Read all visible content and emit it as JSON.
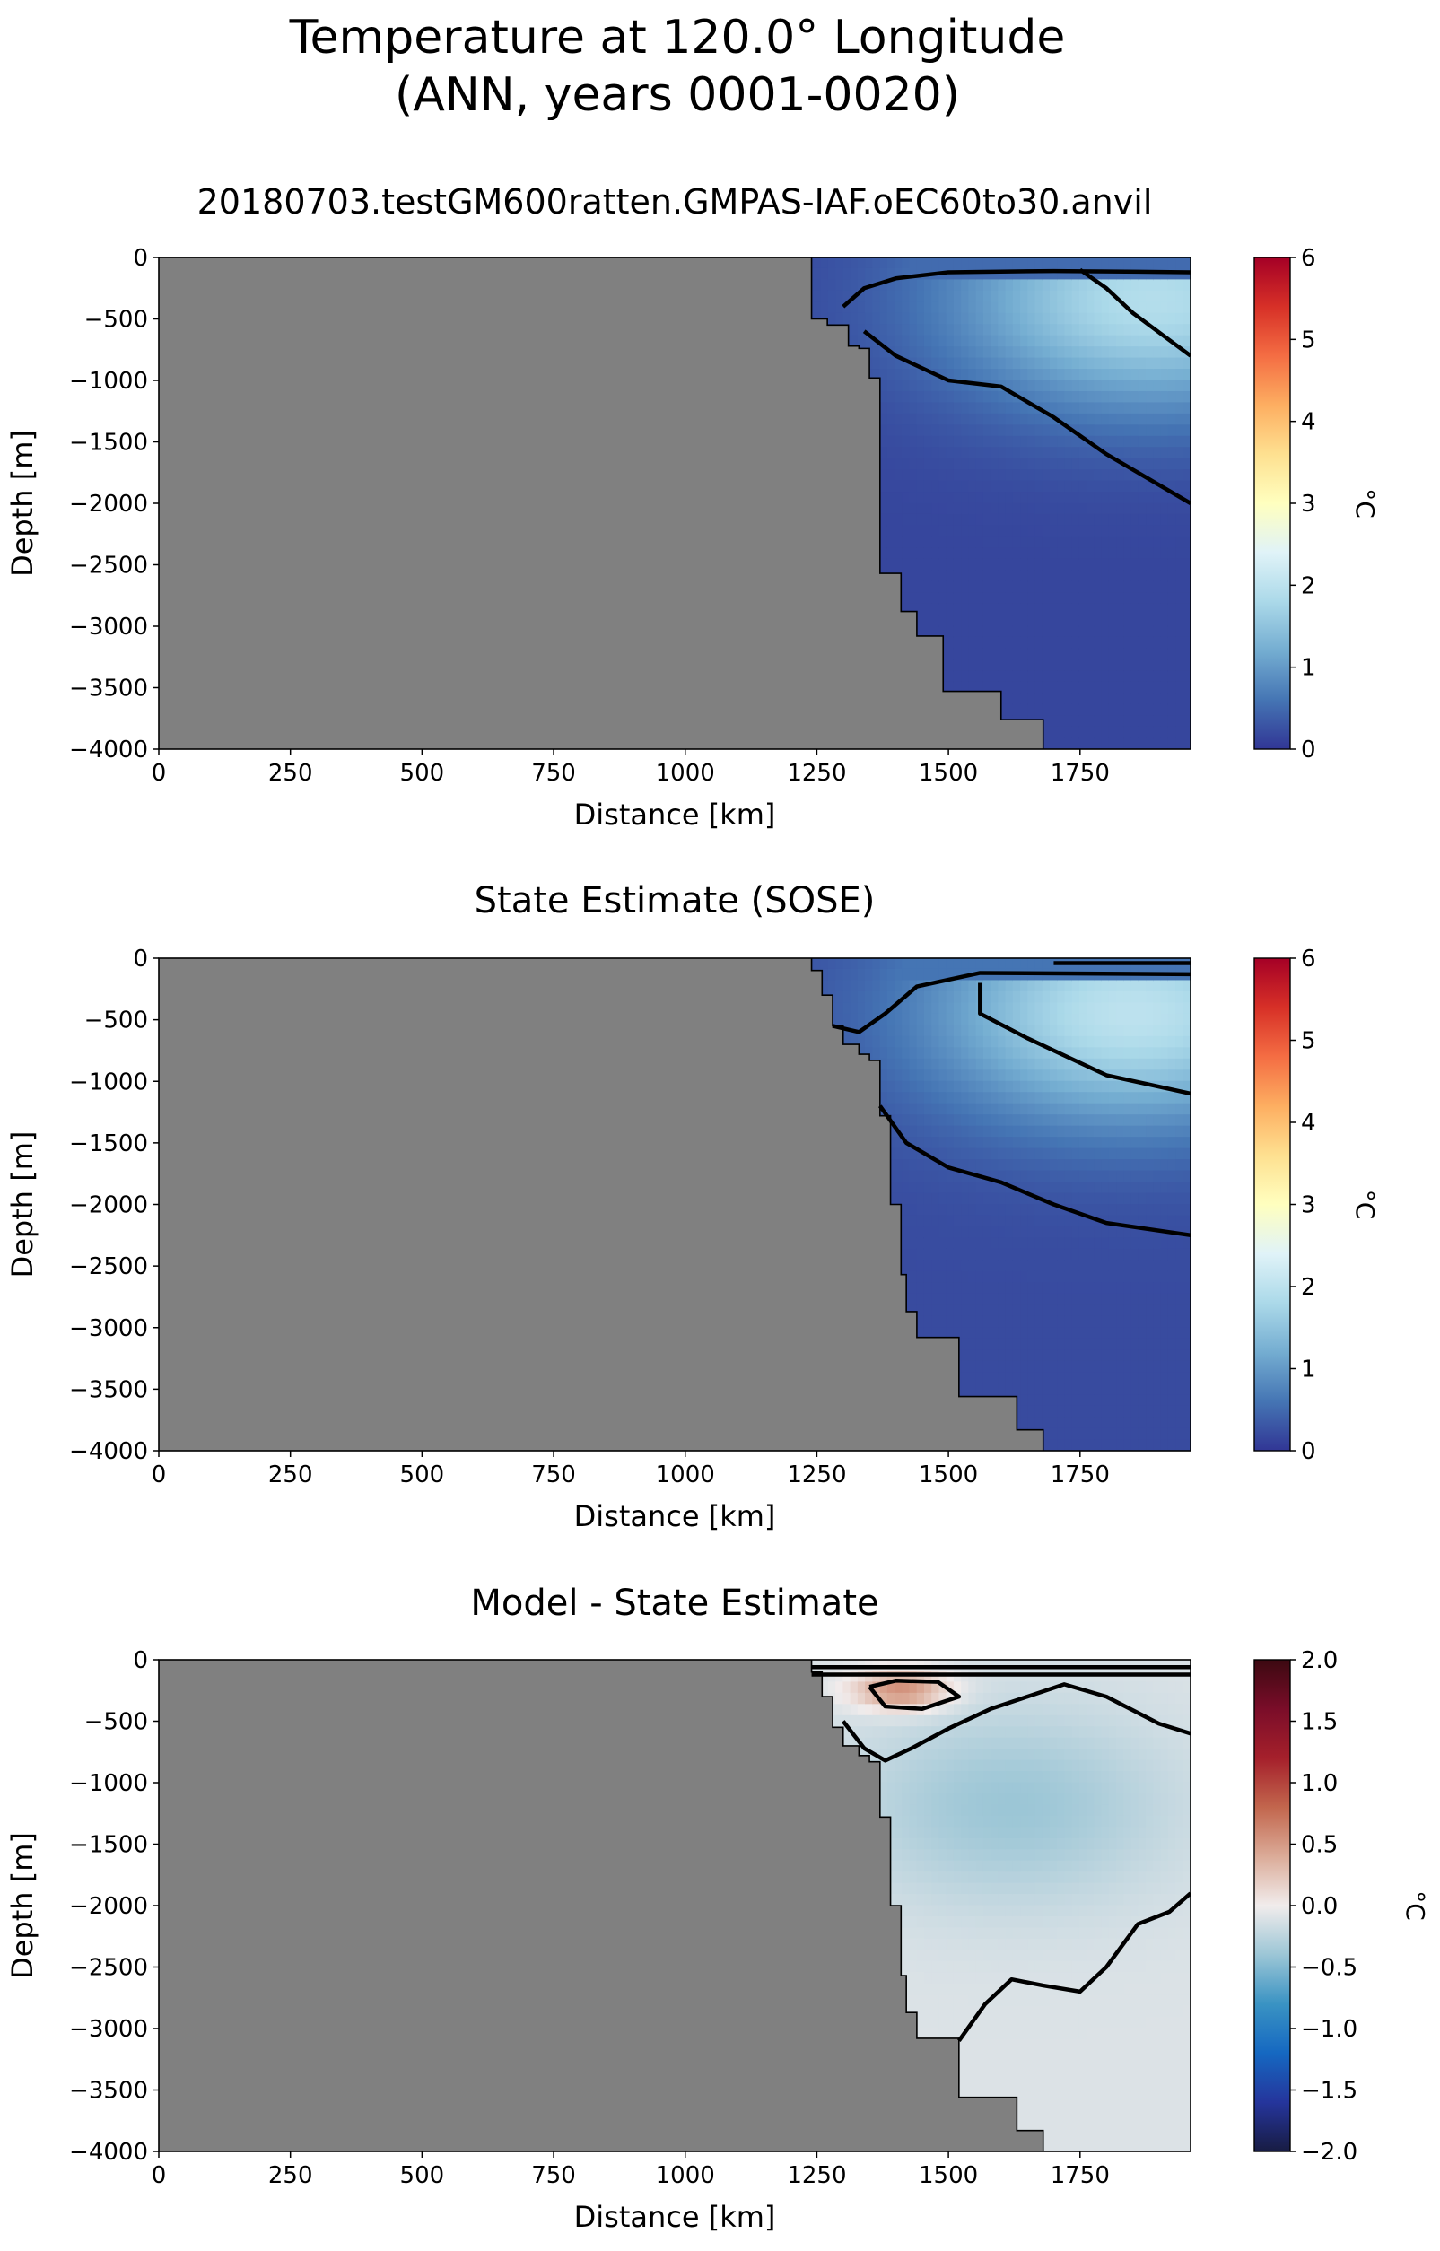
{
  "figure": {
    "title_line1": "Temperature at 120.0° Longitude",
    "title_line2": "(ANN, years 0001-0020)"
  },
  "colors": {
    "land": "#808080",
    "contour": "#000000",
    "temp_colormap": "RdYlBu_r",
    "diff_colormap": "balance"
  },
  "chart_data": [
    {
      "type": "heatmap",
      "title": "20180703.testGM600ratten.GMPAS-IAF.oEC60to30.anvil",
      "xlabel": "Distance [km]",
      "ylabel": "Depth [m]",
      "xlim": [
        0,
        1960
      ],
      "ylim": [
        -4000,
        0
      ],
      "xticks": [
        0,
        250,
        500,
        750,
        1000,
        1250,
        1500,
        1750
      ],
      "yticks": [
        0,
        -500,
        -1000,
        -1500,
        -2000,
        -2500,
        -3000,
        -3500,
        -4000
      ],
      "colorbar": {
        "label": "°C",
        "min": 0,
        "max": 6,
        "ticks": [
          0,
          1,
          2,
          3,
          4,
          5,
          6
        ],
        "colormap": "RdYlBu_r"
      },
      "grid": false,
      "bathymetry": [
        [
          1240,
          0
        ],
        [
          1240,
          -500
        ],
        [
          1270,
          -500
        ],
        [
          1270,
          -550
        ],
        [
          1310,
          -550
        ],
        [
          1310,
          -720
        ],
        [
          1330,
          -720
        ],
        [
          1330,
          -740
        ],
        [
          1350,
          -740
        ],
        [
          1350,
          -980
        ],
        [
          1370,
          -980
        ],
        [
          1370,
          -2570
        ],
        [
          1410,
          -2570
        ],
        [
          1410,
          -2880
        ],
        [
          1440,
          -2880
        ],
        [
          1440,
          -3080
        ],
        [
          1490,
          -3080
        ],
        [
          1490,
          -3530
        ],
        [
          1600,
          -3530
        ],
        [
          1600,
          -3760
        ],
        [
          1680,
          -3760
        ],
        [
          1680,
          -4000
        ]
      ],
      "field": {
        "surface_value": 0.3,
        "core": {
          "x": 1890,
          "depth": -350,
          "value": 1.9
        },
        "deep_value": 0.15
      },
      "contours": [
        [
          [
            1300,
            -400
          ],
          [
            1340,
            -250
          ],
          [
            1400,
            -170
          ],
          [
            1500,
            -120
          ],
          [
            1700,
            -110
          ],
          [
            1960,
            -120
          ]
        ],
        [
          [
            1340,
            -600
          ],
          [
            1400,
            -800
          ],
          [
            1500,
            -1000
          ],
          [
            1600,
            -1050
          ],
          [
            1700,
            -1300
          ],
          [
            1800,
            -1600
          ],
          [
            1960,
            -2000
          ]
        ],
        [
          [
            1750,
            -100
          ],
          [
            1800,
            -250
          ],
          [
            1850,
            -450
          ],
          [
            1960,
            -800
          ]
        ]
      ]
    },
    {
      "type": "heatmap",
      "title": "State Estimate (SOSE)",
      "xlabel": "Distance [km]",
      "ylabel": "Depth [m]",
      "xlim": [
        0,
        1960
      ],
      "ylim": [
        -4000,
        0
      ],
      "xticks": [
        0,
        250,
        500,
        750,
        1000,
        1250,
        1500,
        1750
      ],
      "yticks": [
        0,
        -500,
        -1000,
        -1500,
        -2000,
        -2500,
        -3000,
        -3500,
        -4000
      ],
      "colorbar": {
        "label": "°C",
        "min": 0,
        "max": 6,
        "ticks": [
          0,
          1,
          2,
          3,
          4,
          5,
          6
        ],
        "colormap": "RdYlBu_r"
      },
      "grid": false,
      "bathymetry": [
        [
          1240,
          0
        ],
        [
          1240,
          -100
        ],
        [
          1260,
          -100
        ],
        [
          1260,
          -300
        ],
        [
          1280,
          -300
        ],
        [
          1280,
          -550
        ],
        [
          1300,
          -550
        ],
        [
          1300,
          -700
        ],
        [
          1330,
          -700
        ],
        [
          1330,
          -780
        ],
        [
          1350,
          -780
        ],
        [
          1350,
          -830
        ],
        [
          1370,
          -830
        ],
        [
          1370,
          -1280
        ],
        [
          1390,
          -1280
        ],
        [
          1390,
          -2000
        ],
        [
          1410,
          -2000
        ],
        [
          1410,
          -2570
        ],
        [
          1420,
          -2570
        ],
        [
          1420,
          -2870
        ],
        [
          1440,
          -2870
        ],
        [
          1440,
          -3080
        ],
        [
          1520,
          -3080
        ],
        [
          1520,
          -3560
        ],
        [
          1630,
          -3560
        ],
        [
          1630,
          -3830
        ],
        [
          1680,
          -3830
        ],
        [
          1680,
          -4000
        ]
      ],
      "field": {
        "surface_value": 0.4,
        "core": {
          "x": 1850,
          "depth": -450,
          "value": 2.0
        },
        "deep_value": 0.2
      },
      "contours": [
        [
          [
            1280,
            -550
          ],
          [
            1330,
            -600
          ],
          [
            1380,
            -450
          ],
          [
            1440,
            -230
          ],
          [
            1560,
            -120
          ],
          [
            1960,
            -130
          ]
        ],
        [
          [
            1560,
            -200
          ],
          [
            1560,
            -450
          ],
          [
            1650,
            -650
          ],
          [
            1800,
            -950
          ],
          [
            1960,
            -1100
          ]
        ],
        [
          [
            1370,
            -1200
          ],
          [
            1420,
            -1500
          ],
          [
            1500,
            -1700
          ],
          [
            1600,
            -1820
          ],
          [
            1700,
            -2000
          ],
          [
            1800,
            -2150
          ],
          [
            1960,
            -2250
          ]
        ],
        [
          [
            1700,
            -40
          ],
          [
            1960,
            -40
          ]
        ]
      ]
    },
    {
      "type": "heatmap",
      "title": "Model - State Estimate",
      "xlabel": "Distance [km]",
      "ylabel": "Depth [m]",
      "xlim": [
        0,
        1960
      ],
      "ylim": [
        -4000,
        0
      ],
      "xticks": [
        0,
        250,
        500,
        750,
        1000,
        1250,
        1500,
        1750
      ],
      "yticks": [
        0,
        -500,
        -1000,
        -1500,
        -2000,
        -2500,
        -3000,
        -3500,
        -4000
      ],
      "colorbar": {
        "label": "°C",
        "min": -2.0,
        "max": 2.0,
        "ticks": [
          -2.0,
          -1.5,
          -1.0,
          -0.5,
          0.0,
          0.5,
          1.0,
          1.5,
          2.0
        ],
        "colormap": "balance"
      },
      "grid": false,
      "bathymetry": [
        [
          1240,
          0
        ],
        [
          1240,
          -100
        ],
        [
          1260,
          -100
        ],
        [
          1260,
          -300
        ],
        [
          1280,
          -300
        ],
        [
          1280,
          -550
        ],
        [
          1300,
          -550
        ],
        [
          1300,
          -700
        ],
        [
          1330,
          -700
        ],
        [
          1330,
          -780
        ],
        [
          1350,
          -780
        ],
        [
          1350,
          -830
        ],
        [
          1370,
          -830
        ],
        [
          1370,
          -1280
        ],
        [
          1390,
          -1280
        ],
        [
          1390,
          -2000
        ],
        [
          1410,
          -2000
        ],
        [
          1410,
          -2570
        ],
        [
          1420,
          -2570
        ],
        [
          1420,
          -2870
        ],
        [
          1440,
          -2870
        ],
        [
          1440,
          -3080
        ],
        [
          1520,
          -3080
        ],
        [
          1520,
          -3560
        ],
        [
          1630,
          -3560
        ],
        [
          1630,
          -3830
        ],
        [
          1680,
          -3830
        ],
        [
          1680,
          -4000
        ]
      ],
      "field": {
        "warm_patch": {
          "x": 1410,
          "depth": -250,
          "value": 0.6
        },
        "cool_core": {
          "x": 1620,
          "depth": -1200,
          "value": -0.4
        },
        "deep_value": -0.1
      },
      "contours": [
        [
          [
            1240,
            -60
          ],
          [
            1960,
            -60
          ]
        ],
        [
          [
            1240,
            -120
          ],
          [
            1960,
            -120
          ]
        ],
        [
          [
            1350,
            -220
          ],
          [
            1380,
            -380
          ],
          [
            1450,
            -400
          ],
          [
            1520,
            -300
          ],
          [
            1480,
            -180
          ],
          [
            1400,
            -170
          ],
          [
            1350,
            -220
          ]
        ],
        [
          [
            1300,
            -500
          ],
          [
            1340,
            -720
          ],
          [
            1380,
            -820
          ],
          [
            1430,
            -720
          ],
          [
            1500,
            -560
          ],
          [
            1580,
            -400
          ],
          [
            1650,
            -300
          ],
          [
            1720,
            -200
          ],
          [
            1800,
            -300
          ],
          [
            1900,
            -520
          ],
          [
            1960,
            -600
          ]
        ],
        [
          [
            1520,
            -3100
          ],
          [
            1570,
            -2800
          ],
          [
            1620,
            -2600
          ],
          [
            1680,
            -2650
          ],
          [
            1750,
            -2700
          ],
          [
            1800,
            -2500
          ],
          [
            1860,
            -2150
          ],
          [
            1920,
            -2050
          ],
          [
            1960,
            -1900
          ]
        ]
      ]
    }
  ]
}
